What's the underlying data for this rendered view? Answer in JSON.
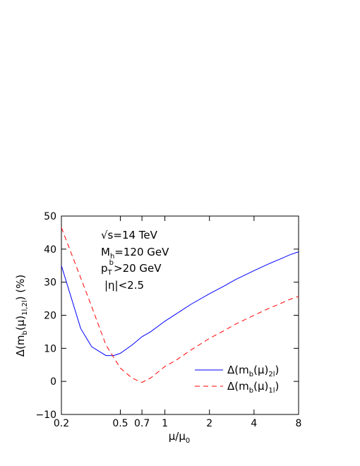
{
  "chart_data": {
    "type": "line",
    "x_scale": "log",
    "xlim": [
      0.2,
      8
    ],
    "ylim": [
      -10,
      50
    ],
    "xticks": [
      {
        "value": 0.2,
        "label": "0.2"
      },
      {
        "value": 0.5,
        "label": "0.5"
      },
      {
        "value": 0.7,
        "label": "0.7"
      },
      {
        "value": 1,
        "label": "1"
      },
      {
        "value": 2,
        "label": "2"
      },
      {
        "value": 4,
        "label": "4"
      },
      {
        "value": 8,
        "label": "8"
      }
    ],
    "yticks": [
      {
        "value": -10,
        "label": "−10"
      },
      {
        "value": 0,
        "label": "0"
      },
      {
        "value": 10,
        "label": "10"
      },
      {
        "value": 20,
        "label": "20"
      },
      {
        "value": 30,
        "label": "30"
      },
      {
        "value": 40,
        "label": "40"
      },
      {
        "value": 50,
        "label": "50"
      }
    ],
    "xlabel": {
      "main": "μ/μ",
      "sub": "0"
    },
    "ylabel": {
      "prefix": "Δ(m",
      "sub1": "b",
      "mid": "(μ)",
      "sub2": "1l,2l",
      "suffix": ") (%)"
    },
    "annotations": {
      "line1": "√s=14 TeV",
      "line2_main": "M",
      "line2_sub": "h",
      "line2_rest": "=120 GeV",
      "line3_main": "p",
      "line3_sub": "T",
      "line3_sup": "b",
      "line3_rest": ">20 GeV",
      "line4": "|η|<2.5"
    },
    "legend_position": "bottom-right",
    "grid": false,
    "series": [
      {
        "name_prefix": "Δ(m",
        "name_sub1": "b",
        "name_mid": "(μ)",
        "name_sub2": "2l",
        "name_suffix": ")",
        "color": "#0000ff",
        "style": "solid",
        "x": [
          0.2,
          0.27,
          0.32,
          0.4,
          0.45,
          0.5,
          0.6,
          0.7,
          0.8,
          1.0,
          1.2,
          1.5,
          2.0,
          2.5,
          3.0,
          4.0,
          5.0,
          6.0,
          7.0,
          8.0
        ],
        "y": [
          35,
          16,
          10.5,
          7.8,
          7.8,
          8.5,
          11,
          13.5,
          15,
          18.2,
          20.5,
          23.3,
          26.5,
          28.8,
          30.8,
          33.5,
          35.5,
          37,
          38.3,
          39.2
        ]
      },
      {
        "name_prefix": "Δ(m",
        "name_sub1": "b",
        "name_mid": "(μ)",
        "name_sub2": "1l",
        "name_suffix": ")",
        "color": "#ff0000",
        "style": "dashed",
        "x": [
          0.2,
          0.3,
          0.4,
          0.5,
          0.6,
          0.7,
          0.8,
          1.0,
          1.2,
          1.5,
          2.0,
          2.5,
          3.0,
          4.0,
          5.0,
          6.0,
          7.0,
          8.0
        ],
        "y": [
          46.5,
          26,
          11,
          4,
          1,
          -0.3,
          1,
          4.5,
          6.5,
          9.5,
          13,
          15.3,
          17.3,
          20,
          22,
          23.5,
          24.8,
          25.7
        ]
      }
    ]
  }
}
